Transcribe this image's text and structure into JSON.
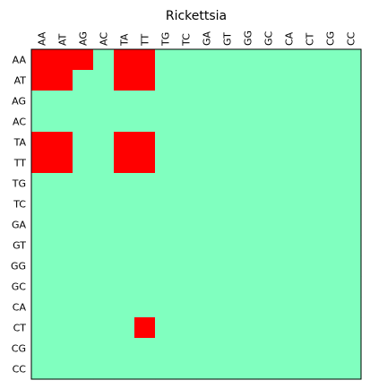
{
  "chart_data": {
    "type": "heatmap",
    "title": "Rickettsia",
    "x_labels": [
      "AA",
      "AT",
      "AG",
      "AC",
      "TA",
      "TT",
      "TG",
      "TC",
      "GA",
      "GT",
      "GG",
      "GC",
      "CA",
      "CT",
      "CG",
      "CC"
    ],
    "y_labels": [
      "AA",
      "AT",
      "AG",
      "AC",
      "TA",
      "TT",
      "TG",
      "TC",
      "GA",
      "GT",
      "GG",
      "GC",
      "CA",
      "CT",
      "CG",
      "CC"
    ],
    "x_ticks_position": "top",
    "grid": false,
    "colors": {
      "low": "#80ffbf",
      "high": "#ff0000",
      "frame": "#000000"
    },
    "values": [
      [
        1,
        1,
        1,
        0,
        1,
        1,
        0,
        0,
        0,
        0,
        0,
        0,
        0,
        0,
        0,
        0
      ],
      [
        1,
        1,
        0,
        0,
        1,
        1,
        0,
        0,
        0,
        0,
        0,
        0,
        0,
        0,
        0,
        0
      ],
      [
        0,
        0,
        0,
        0,
        0,
        0,
        0,
        0,
        0,
        0,
        0,
        0,
        0,
        0,
        0,
        0
      ],
      [
        0,
        0,
        0,
        0,
        0,
        0,
        0,
        0,
        0,
        0,
        0,
        0,
        0,
        0,
        0,
        0
      ],
      [
        1,
        1,
        0,
        0,
        1,
        1,
        0,
        0,
        0,
        0,
        0,
        0,
        0,
        0,
        0,
        0
      ],
      [
        1,
        1,
        0,
        0,
        1,
        1,
        0,
        0,
        0,
        0,
        0,
        0,
        0,
        0,
        0,
        0
      ],
      [
        0,
        0,
        0,
        0,
        0,
        0,
        0,
        0,
        0,
        0,
        0,
        0,
        0,
        0,
        0,
        0
      ],
      [
        0,
        0,
        0,
        0,
        0,
        0,
        0,
        0,
        0,
        0,
        0,
        0,
        0,
        0,
        0,
        0
      ],
      [
        0,
        0,
        0,
        0,
        0,
        0,
        0,
        0,
        0,
        0,
        0,
        0,
        0,
        0,
        0,
        0
      ],
      [
        0,
        0,
        0,
        0,
        0,
        0,
        0,
        0,
        0,
        0,
        0,
        0,
        0,
        0,
        0,
        0
      ],
      [
        0,
        0,
        0,
        0,
        0,
        0,
        0,
        0,
        0,
        0,
        0,
        0,
        0,
        0,
        0,
        0
      ],
      [
        0,
        0,
        0,
        0,
        0,
        0,
        0,
        0,
        0,
        0,
        0,
        0,
        0,
        0,
        0,
        0
      ],
      [
        0,
        0,
        0,
        0,
        0,
        0,
        0,
        0,
        0,
        0,
        0,
        0,
        0,
        0,
        0,
        0
      ],
      [
        0,
        0,
        0,
        0,
        0,
        1,
        0,
        0,
        0,
        0,
        0,
        0,
        0,
        0,
        0,
        0
      ],
      [
        0,
        0,
        0,
        0,
        0,
        0,
        0,
        0,
        0,
        0,
        0,
        0,
        0,
        0,
        0,
        0
      ],
      [
        0,
        0,
        0,
        0,
        0,
        0,
        0,
        0,
        0,
        0,
        0,
        0,
        0,
        0,
        0,
        0
      ]
    ]
  }
}
